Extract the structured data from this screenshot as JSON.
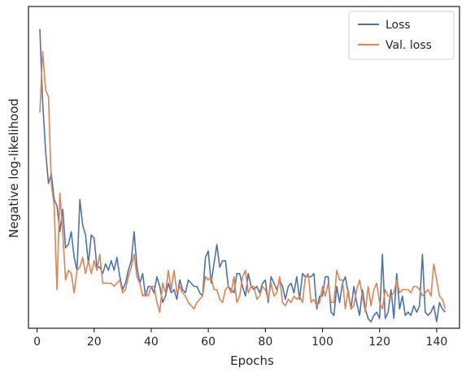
{
  "chart_data": {
    "type": "line",
    "title": "",
    "xlabel": "Epochs",
    "ylabel": "Negative log-likelihood",
    "xlim": [
      -3,
      148
    ],
    "ylim": [
      0,
      100
    ],
    "xticks": [
      0,
      20,
      40,
      60,
      80,
      100,
      120,
      140
    ],
    "yticks_shown": false,
    "grid": false,
    "legend_position": "top-right",
    "series": [
      {
        "name": "Loss",
        "color": "#4c72b0",
        "x": [
          1,
          2,
          3,
          4,
          5,
          6,
          7,
          8,
          9,
          10,
          11,
          12,
          13,
          14,
          15,
          16,
          17,
          18,
          19,
          20,
          21,
          22,
          23,
          24,
          25,
          26,
          27,
          28,
          29,
          30,
          31,
          32,
          33,
          34,
          35,
          36,
          37,
          38,
          39,
          40,
          41,
          42,
          43,
          44,
          45,
          46,
          47,
          48,
          49,
          50,
          51,
          52,
          53,
          54,
          55,
          56,
          57,
          58,
          59,
          60,
          61,
          62,
          63,
          64,
          65,
          66,
          67,
          68,
          69,
          70,
          71,
          72,
          73,
          74,
          75,
          76,
          77,
          78,
          79,
          80,
          81,
          82,
          83,
          84,
          85,
          86,
          87,
          88,
          89,
          90,
          91,
          92,
          93,
          94,
          95,
          96,
          97,
          98,
          99,
          100,
          101,
          102,
          103,
          104,
          105,
          106,
          107,
          108,
          109,
          110,
          111,
          112,
          113,
          114,
          115,
          116,
          117,
          118,
          119,
          120,
          121,
          122,
          123,
          124,
          125,
          126,
          127,
          128,
          129,
          130,
          131,
          132,
          133,
          134,
          135,
          136,
          137,
          138,
          139,
          140,
          141,
          142,
          143
        ],
        "values": [
          93,
          70,
          55,
          45,
          48,
          40,
          38,
          30,
          37,
          25,
          26,
          30,
          22,
          18,
          40,
          32,
          29,
          20,
          29,
          28,
          19,
          19,
          17,
          20,
          18,
          21,
          18,
          22,
          16,
          12,
          14,
          18,
          21,
          30,
          19,
          14,
          17,
          10,
          13,
          13,
          11,
          16,
          13,
          8,
          10,
          14,
          11,
          12,
          9,
          15,
          12,
          11,
          15,
          14,
          13,
          13,
          11,
          10,
          22,
          24,
          14,
          20,
          26,
          19,
          21,
          21,
          13,
          12,
          11,
          17,
          17,
          13,
          10,
          17,
          13,
          12,
          13,
          11,
          14,
          15,
          8,
          16,
          14,
          12,
          15,
          13,
          9,
          13,
          14,
          11,
          16,
          9,
          17,
          16,
          16,
          16,
          17,
          6,
          10,
          10,
          16,
          16,
          5,
          4,
          13,
          8,
          14,
          16,
          11,
          6,
          13,
          8,
          4,
          12,
          6,
          3,
          2,
          4,
          5,
          3,
          23,
          3,
          5,
          12,
          3,
          17,
          6,
          10,
          4,
          5,
          4,
          7,
          5,
          7,
          23,
          5,
          4,
          5,
          7,
          2,
          8,
          6,
          5
        ],
        "end_y": [
          92,
          70,
          54,
          45,
          47,
          42,
          38,
          35,
          37,
          25,
          25,
          30,
          25,
          20,
          39,
          32,
          30,
          20,
          28,
          27,
          20,
          20,
          17,
          20,
          18,
          21,
          17,
          21,
          13,
          10,
          14,
          17,
          22,
          28,
          18,
          14,
          18,
          12,
          13,
          13,
          10,
          15,
          12,
          8,
          11,
          13,
          12,
          12,
          9,
          14,
          12,
          11,
          15,
          14,
          13,
          13,
          11,
          10,
          21,
          24,
          14,
          20,
          26,
          18,
          21,
          20,
          12,
          12,
          11,
          17,
          17,
          13,
          10,
          17,
          13,
          12,
          13,
          11,
          14,
          15,
          8,
          16,
          14,
          12,
          15,
          13,
          9,
          13,
          14,
          10,
          15,
          9,
          16,
          16,
          16,
          16,
          17,
          6,
          10,
          10,
          16,
          16,
          5,
          4,
          13,
          8,
          14,
          16,
          10,
          6,
          13,
          8,
          4,
          11,
          6,
          3,
          2,
          4,
          5,
          3,
          23,
          3,
          5,
          12,
          3,
          17,
          6,
          10,
          4,
          5,
          4,
          7,
          5,
          7,
          23,
          5,
          4,
          5,
          7,
          2,
          8,
          6,
          5
        ]
      },
      {
        "name": "Val. loss",
        "color": "#dd8452",
        "x": [
          1,
          2,
          3,
          4,
          5,
          6,
          7,
          8,
          9,
          10,
          11,
          12,
          13,
          14,
          15,
          16,
          17,
          18,
          19,
          20,
          21,
          22,
          23,
          24,
          25,
          26,
          27,
          28,
          29,
          30,
          31,
          32,
          33,
          34,
          35,
          36,
          37,
          38,
          39,
          40,
          41,
          42,
          43,
          44,
          45,
          46,
          47,
          48,
          49,
          50,
          51,
          52,
          53,
          54,
          55,
          56,
          57,
          58,
          59,
          60,
          61,
          62,
          63,
          64,
          65,
          66,
          67,
          68,
          69,
          70,
          71,
          72,
          73,
          74,
          75,
          76,
          77,
          78,
          79,
          80,
          81,
          82,
          83,
          84,
          85,
          86,
          87,
          88,
          89,
          90,
          91,
          92,
          93,
          94,
          95,
          96,
          97,
          98,
          99,
          100,
          101,
          102,
          103,
          104,
          105,
          106,
          107,
          108,
          109,
          110,
          111,
          112,
          113,
          114,
          115,
          116,
          117,
          118,
          119,
          120,
          121,
          122,
          123,
          124,
          125,
          126,
          127,
          128,
          129,
          130,
          131,
          132,
          133,
          134,
          135,
          136,
          137,
          138,
          139,
          140,
          141,
          142,
          143
        ],
        "values": [
          67,
          86,
          74,
          72,
          45,
          38,
          12,
          42,
          30,
          15,
          18,
          17,
          11,
          18,
          19,
          22,
          17,
          21,
          17,
          21,
          18,
          23,
          14,
          14,
          14,
          14,
          13,
          14,
          15,
          11,
          12,
          16,
          19,
          23,
          16,
          14,
          10,
          11,
          10,
          13,
          13,
          8,
          5,
          14,
          11,
          18,
          12,
          18,
          11,
          13,
          11,
          10,
          8,
          7,
          6,
          8,
          9,
          10,
          16,
          15,
          16,
          12,
          12,
          9,
          8,
          12,
          13,
          11,
          16,
          8,
          10,
          16,
          18,
          11,
          13,
          13,
          9,
          10,
          13,
          12,
          9,
          14,
          10,
          11,
          16,
          8,
          7,
          9,
          8,
          10,
          9,
          10,
          8,
          16,
          17,
          8,
          9,
          7,
          8,
          13,
          10,
          14,
          8,
          8,
          18,
          15,
          15,
          6,
          12,
          6,
          7,
          12,
          15,
          10,
          5,
          13,
          7,
          12,
          14,
          8,
          6,
          12,
          10,
          10,
          11,
          15,
          11,
          12,
          12,
          12,
          11,
          13,
          13,
          12,
          10,
          11,
          12,
          10,
          20,
          15,
          10,
          9,
          6
        ]
      }
    ]
  },
  "legend": {
    "items": [
      {
        "label": "Loss",
        "color": "#4c72b0"
      },
      {
        "label": "Val. loss",
        "color": "#dd8452"
      }
    ]
  },
  "colors": {
    "axes_edge": "#262626",
    "tick_text": "#262626"
  }
}
